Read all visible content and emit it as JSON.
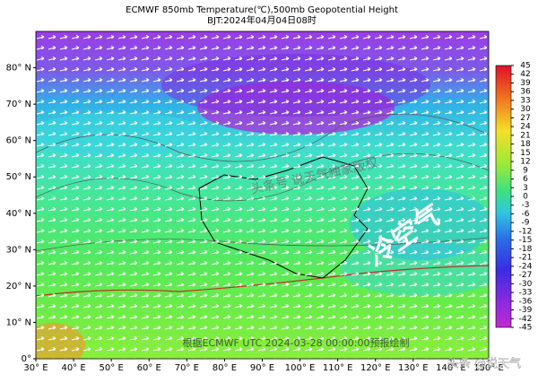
{
  "map": {
    "title": "ECMWF 850mb Temperature(℃),500mb Geopotential Height",
    "subtitle": "BJT:2024年04月04日08时",
    "lon_range": [
      30,
      150
    ],
    "lat_range": [
      0,
      90
    ],
    "lon_ticks": [
      {
        "value": 30,
        "label": "30° E"
      },
      {
        "value": 40,
        "label": "40° E"
      },
      {
        "value": 50,
        "label": "50° E"
      },
      {
        "value": 60,
        "label": "60° E"
      },
      {
        "value": 70,
        "label": "70° E"
      },
      {
        "value": 80,
        "label": "80° E"
      },
      {
        "value": 90,
        "label": "90° E"
      },
      {
        "value": 100,
        "label": "100° E"
      },
      {
        "value": 110,
        "label": "110° E"
      },
      {
        "value": 120,
        "label": "120° E"
      },
      {
        "value": 130,
        "label": "130° E"
      },
      {
        "value": 140,
        "label": "140° E"
      },
      {
        "value": 150,
        "label": "150° E"
      }
    ],
    "lat_ticks": [
      {
        "value": 0,
        "label": "0°"
      },
      {
        "value": 10,
        "label": "10° N"
      },
      {
        "value": 20,
        "label": "20° N"
      },
      {
        "value": 30,
        "label": "30° N"
      },
      {
        "value": 40,
        "label": "40° N"
      },
      {
        "value": 50,
        "label": "50° N"
      },
      {
        "value": 60,
        "label": "60° N"
      },
      {
        "value": 70,
        "label": "70° N"
      },
      {
        "value": 80,
        "label": "80° N"
      }
    ],
    "colorbar": {
      "range": [
        -45,
        45
      ],
      "ticks": [
        45,
        42,
        39,
        36,
        33,
        30,
        27,
        24,
        21,
        18,
        15,
        12,
        9,
        6,
        3,
        0,
        -3,
        -6,
        -9,
        -12,
        -15,
        -18,
        -21,
        -24,
        -27,
        -30,
        -33,
        -36,
        -39,
        -42,
        -45
      ]
    },
    "annotations": {
      "cold_air": "冷空气",
      "copyright": "头条号 说天气独家版权",
      "source": "根据ECMWF UTC 2024-03-28 00:00:00预报绘制",
      "watermark": "头条 @说天气"
    }
  }
}
